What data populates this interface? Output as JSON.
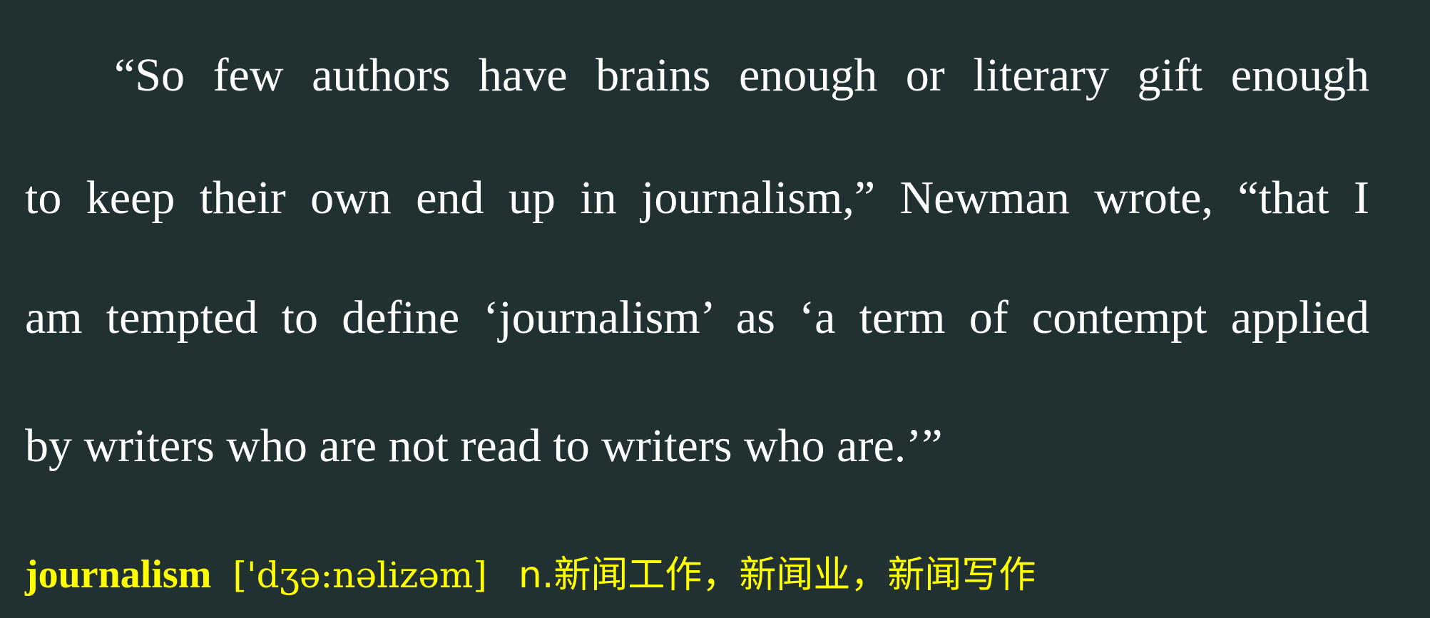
{
  "quote": {
    "lines": [
      "“So few authors have brains enough or literary gift enough",
      "to keep their own end up in journalism,” Newman wrote, “that I",
      "am tempted to define ‘journalism’ as ‘a term of contempt applied",
      "by writers who are not read to writers who are.’”"
    ]
  },
  "vocabulary": {
    "word": "journalism",
    "phonetic": "['dʒə:nəlizəm]",
    "definition": "n.新闻工作，新闻业，新闻写作"
  },
  "colors": {
    "background": "#213132",
    "text": "#ffffff",
    "highlight": "#ffff00"
  }
}
